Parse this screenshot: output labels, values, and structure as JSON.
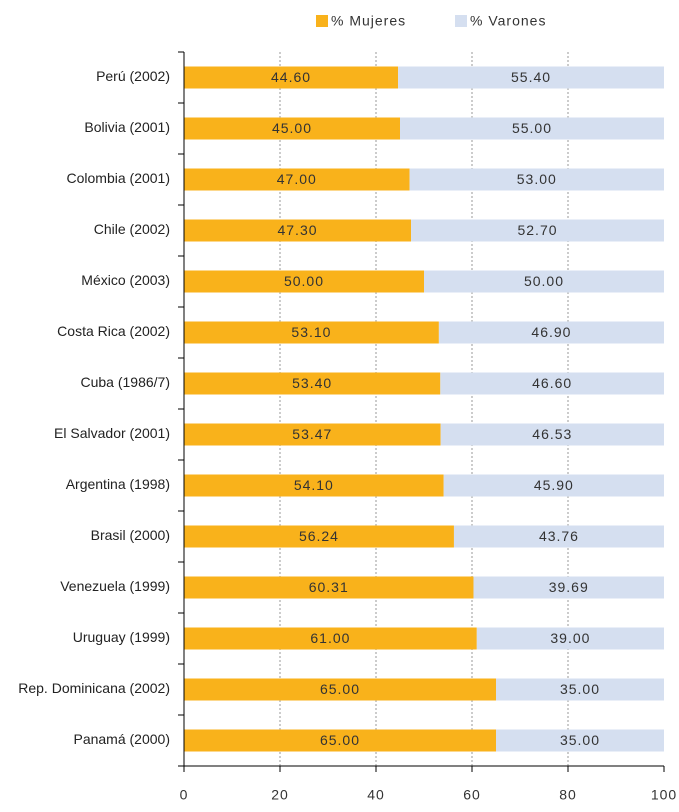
{
  "chart_data": {
    "type": "stacked_bar_horizontal",
    "categories": [
      "Perú (2002)",
      "Bolivia (2001)",
      "Colombia (2001)",
      "Chile (2002)",
      "México (2003)",
      "Costa Rica (2002)",
      "Cuba (1986/7)",
      "El Salvador (2001)",
      "Argentina (1998)",
      "Brasil (2000)",
      "Venezuela (1999)",
      "Uruguay (1999)",
      "Rep. Dominicana (2002)",
      "Panamá (2000)"
    ],
    "series": [
      {
        "name": "% Mujeres",
        "color": "#f9b21b",
        "values": [
          44.6,
          45,
          47,
          47.3,
          50,
          53.1,
          53.4,
          53.47,
          54.1,
          56.24,
          60.31,
          61,
          65,
          65
        ],
        "value_labels": [
          "44.60",
          "45.00",
          "47.00",
          "47.30",
          "50.00",
          "53.10",
          "53.40",
          "53.47",
          "54.10",
          "56.24",
          "60.31",
          "61.00",
          "65.00",
          "65.00"
        ]
      },
      {
        "name": "% Varones",
        "color": "#d5dff0",
        "values": [
          55.4,
          55,
          53,
          52.7,
          50,
          46.9,
          46.6,
          46.53,
          45.9,
          43.76,
          39.69,
          39,
          35,
          35
        ],
        "value_labels": [
          "55.40",
          "55.00",
          "53.00",
          "52.70",
          "50.00",
          "46.90",
          "46.60",
          "46.53",
          "45.90",
          "43.76",
          "39.69",
          "39.00",
          "35.00",
          "35.00"
        ]
      }
    ],
    "xlim": [
      0,
      100
    ],
    "xticks": [
      0,
      20,
      40,
      60,
      80,
      100
    ],
    "grid": true,
    "legend": "top"
  }
}
